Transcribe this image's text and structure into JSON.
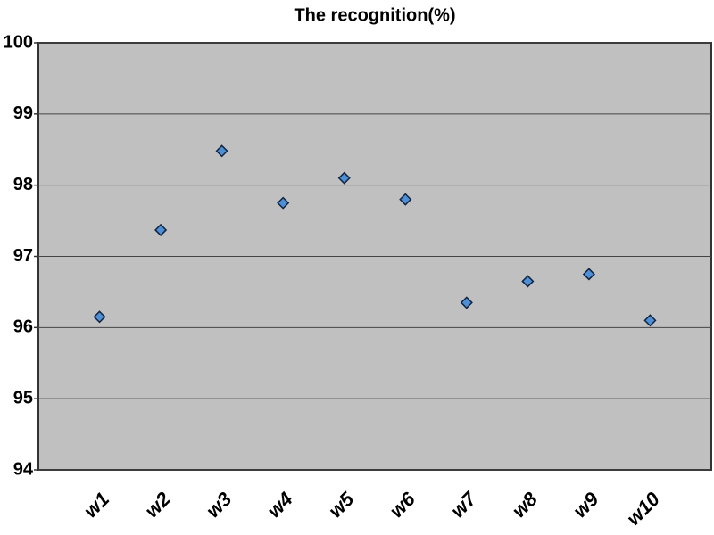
{
  "chart_data": {
    "type": "scatter",
    "title": "The recognition(%)",
    "categories": [
      "w1",
      "w2",
      "w3",
      "w4",
      "w5",
      "w6",
      "w7",
      "w8",
      "w9",
      "w10"
    ],
    "values": [
      96.15,
      97.37,
      98.48,
      97.75,
      98.1,
      97.8,
      96.35,
      96.65,
      96.75,
      96.1
    ],
    "color": "#4f8fd6",
    "ylim": [
      94,
      100
    ],
    "yticks": [
      94,
      95,
      96,
      97,
      98,
      99,
      100
    ],
    "grid": true
  }
}
